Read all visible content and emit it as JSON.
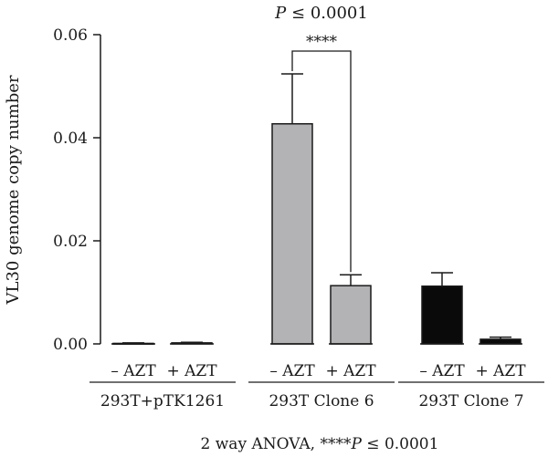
{
  "chart_data": {
    "type": "bar",
    "title": "",
    "top_annotation": {
      "prefix": "P",
      "rest": " ≤ 0.0001"
    },
    "ylabel": "VL30 genome copy number",
    "ylim": [
      0,
      0.06
    ],
    "yticks": [
      "0.00",
      "0.02",
      "0.04",
      "0.06"
    ],
    "groups": [
      {
        "label": "293T+pTK1261",
        "color": "#bfbfbf",
        "bars": [
          {
            "label": "– AZT",
            "value": 0.0001,
            "error": 0.0001
          },
          {
            "label": "+ AZT",
            "value": 0.0002,
            "error": 0.0001
          }
        ]
      },
      {
        "label": "293T Clone 6",
        "color": "#b3b3b6",
        "bars": [
          {
            "label": "– AZT",
            "value": 0.0427,
            "error": 0.0097
          },
          {
            "label": "+ AZT",
            "value": 0.0113,
            "error": 0.0021
          }
        ]
      },
      {
        "label": "293T Clone 7",
        "color": "#0a0a0a",
        "bars": [
          {
            "label": "– AZT",
            "value": 0.0112,
            "error": 0.0026
          },
          {
            "label": "+ AZT",
            "value": 0.0009,
            "error": 0.0004
          }
        ]
      }
    ],
    "significance": {
      "label": "****",
      "group_index": 1
    },
    "footnote": {
      "prefix": "2 way ANOVA, ****",
      "italic": "P",
      "rest": " ≤ 0.0001"
    }
  }
}
